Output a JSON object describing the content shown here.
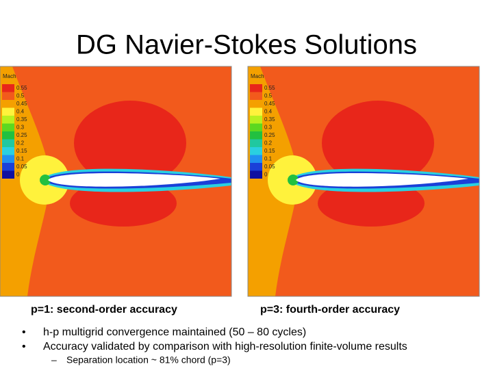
{
  "title": "DG Navier-Stokes Solutions",
  "figures": [
    {
      "legend_title": "Mach",
      "legend_values": [
        "0.55",
        "0.5",
        "0.45",
        "0.4",
        "0.35",
        "0.3",
        "0.25",
        "0.2",
        "0.15",
        "0.1",
        "0.05",
        "0"
      ],
      "caption": "p=1: second-order accuracy"
    },
    {
      "legend_title": "Mach",
      "legend_values": [
        "0.55",
        "0.5",
        "0.45",
        "0.4",
        "0.35",
        "0.3",
        "0.25",
        "0.2",
        "0.15",
        "0.1",
        "0.05",
        "0"
      ],
      "caption": "p=3: fourth-order accuracy"
    }
  ],
  "bullets": [
    {
      "text": "h-p multigrid convergence maintained (50 – 80 cycles)"
    },
    {
      "text": "Accuracy validated by comparison with high-resolution finite-volume results",
      "sub_bullets": [
        "Separation location ~ 81% chord (p=3)"
      ]
    }
  ]
}
